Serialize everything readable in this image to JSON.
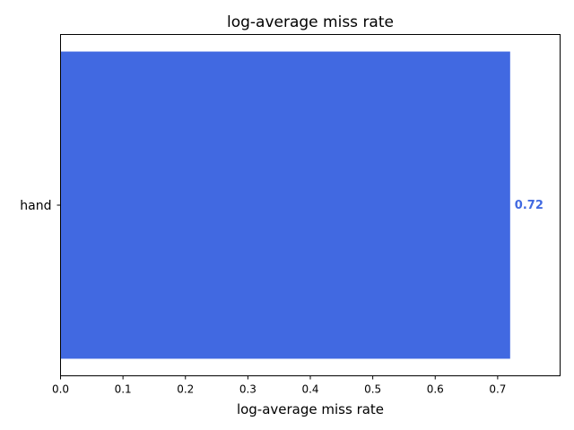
{
  "chart_data": {
    "type": "bar",
    "orientation": "horizontal",
    "title": "log-average miss rate",
    "xlabel": "log-average miss rate",
    "ylabel": "",
    "categories": [
      "hand"
    ],
    "values": [
      0.72
    ],
    "value_labels": [
      "0.72"
    ],
    "xlim": [
      0,
      0.8
    ],
    "xticks": [
      0.0,
      0.1,
      0.2,
      0.3,
      0.4,
      0.5,
      0.6,
      0.7
    ],
    "xtick_labels": [
      "0.0",
      "0.1",
      "0.2",
      "0.3",
      "0.4",
      "0.5",
      "0.6",
      "0.7"
    ],
    "grid": false,
    "colors": {
      "bar": "#4169e1",
      "label": "#4169e1"
    }
  }
}
